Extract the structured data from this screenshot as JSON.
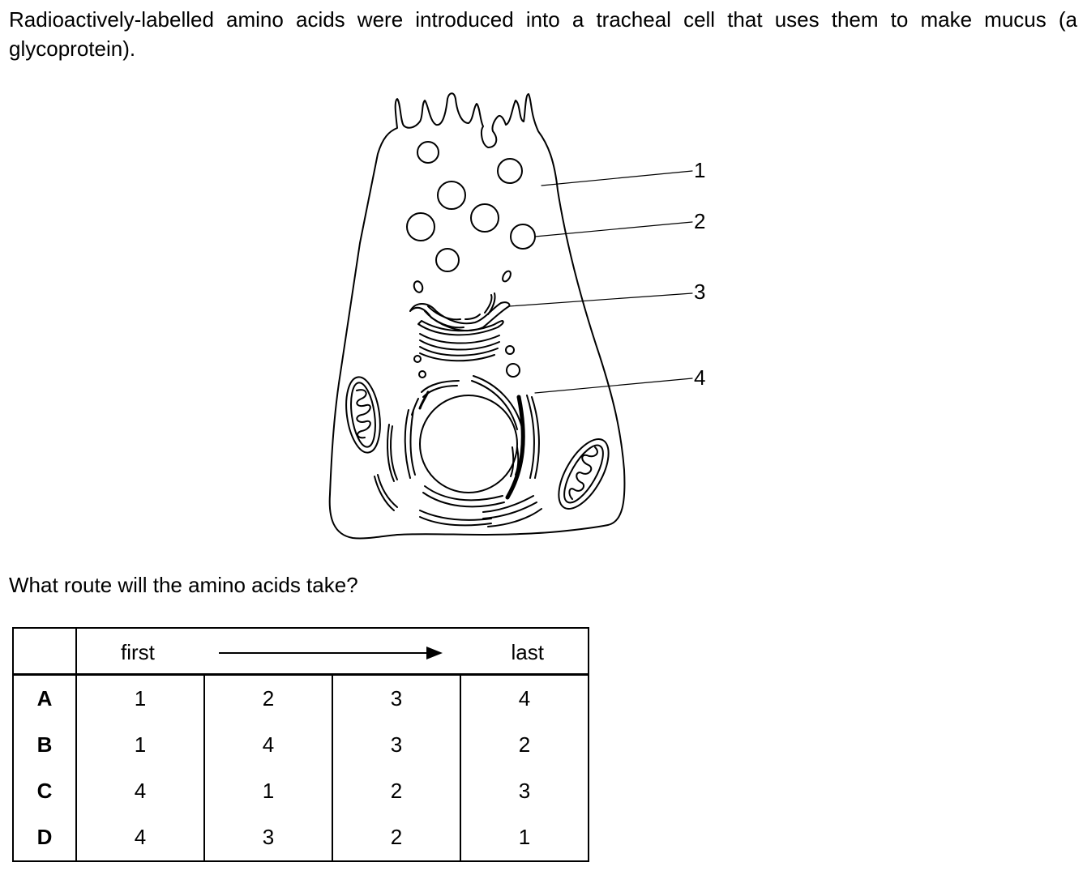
{
  "question": {
    "intro": "Radioactively-labelled amino acids were introduced into a tracheal cell that uses them to make mucus (a glycoprotein).",
    "prompt": "What route will the amino acids take?"
  },
  "diagram": {
    "labels": [
      "1",
      "2",
      "3",
      "4"
    ]
  },
  "table": {
    "header_first": "first",
    "header_last": "last",
    "rows": [
      {
        "key": "A",
        "values": [
          "1",
          "2",
          "3",
          "4"
        ]
      },
      {
        "key": "B",
        "values": [
          "1",
          "4",
          "3",
          "2"
        ]
      },
      {
        "key": "C",
        "values": [
          "4",
          "1",
          "2",
          "3"
        ]
      },
      {
        "key": "D",
        "values": [
          "4",
          "3",
          "2",
          "1"
        ]
      }
    ]
  }
}
